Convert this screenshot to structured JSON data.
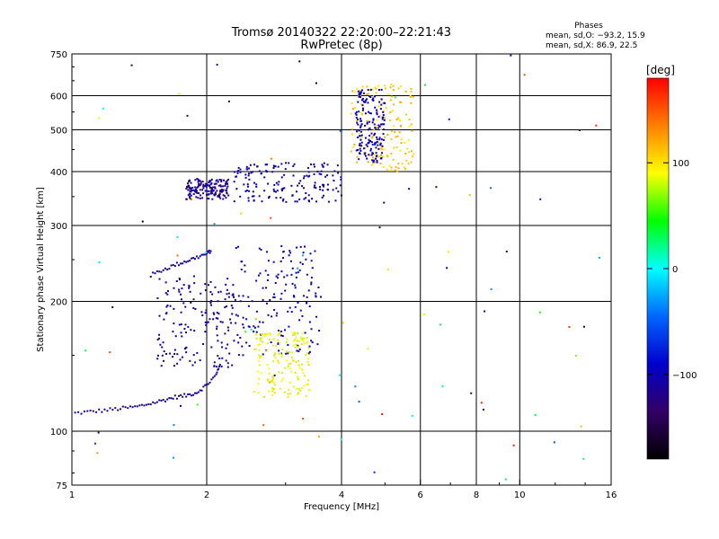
{
  "chart_data": {
    "type": "scatter",
    "title": "Tromsø 20140322 22:20:00–22:21:43",
    "subtitle": "RwPretec (8p)",
    "phase_stats": {
      "heading": "Phases",
      "line_o": "mean, sd,O: −93.2, 15.9",
      "line_x": "mean, sd,X:  86.9, 22.5"
    },
    "xlabel": "Frequency [MHz]",
    "ylabel": "Stationary phase Virtual Height [km]",
    "xscale": "log",
    "yscale": "log",
    "xlim": [
      1,
      16
    ],
    "ylim": [
      75,
      750
    ],
    "x_ticks": [
      1,
      2,
      4,
      6,
      8,
      10,
      16
    ],
    "x_tick_labels": [
      "1",
      "2",
      "4",
      "6",
      "8",
      "10",
      "16"
    ],
    "x_grid": [
      2,
      4,
      6,
      8,
      10
    ],
    "y_ticks": [
      75,
      100,
      200,
      300,
      400,
      500,
      600,
      750
    ],
    "y_tick_labels": [
      "75",
      "100",
      "200",
      "300",
      "400",
      "500",
      "600",
      "750"
    ],
    "y_grid": [
      100,
      200,
      300,
      400,
      500,
      600
    ],
    "grid": true,
    "colorbar": {
      "label": "[deg]",
      "range": [
        -180,
        180
      ],
      "ticks": [
        100,
        0,
        -100
      ],
      "tick_labels": [
        "100",
        "0",
        "−100"
      ],
      "colors": [
        "#ff0000",
        "#ff8000",
        "#ffff00",
        "#00ff00",
        "#00ffff",
        "#0066ff",
        "#0000cc",
        "#330066",
        "#000000"
      ],
      "placement": "right"
    },
    "clusters": [
      {
        "name": "o-trace-low",
        "phase": -115,
        "points": [
          [
            1.0,
            110
          ],
          [
            1.1,
            111
          ],
          [
            1.2,
            112
          ],
          [
            1.3,
            113
          ],
          [
            1.4,
            114
          ],
          [
            1.5,
            116
          ],
          [
            1.6,
            118
          ],
          [
            1.7,
            120
          ],
          [
            1.8,
            121
          ],
          [
            1.9,
            123
          ],
          [
            2.0,
            128
          ],
          [
            2.1,
            135
          ],
          [
            2.15,
            145
          ]
        ]
      },
      {
        "name": "o-trace-e",
        "phase": -110,
        "points": [
          [
            1.5,
            230
          ],
          [
            1.6,
            237
          ],
          [
            1.7,
            243
          ],
          [
            1.8,
            248
          ],
          [
            1.9,
            253
          ],
          [
            2.0,
            258
          ],
          [
            2.05,
            263
          ]
        ]
      },
      {
        "name": "o-trace-spread",
        "phase": -110,
        "spread_y": [
          140,
          230
        ],
        "x_range": [
          1.55,
          2.3
        ]
      },
      {
        "name": "o-trace-f",
        "phase": -115,
        "spread_y": [
          345,
          385
        ],
        "x_range": [
          1.8,
          2.25
        ]
      },
      {
        "name": "f-layer",
        "phase": -105,
        "spread_y": [
          340,
          420
        ],
        "x_range": [
          2.3,
          4.0
        ]
      },
      {
        "name": "mid-spread",
        "phase": -100,
        "spread_y": [
          150,
          270
        ],
        "x_range": [
          2.3,
          3.6
        ]
      },
      {
        "name": "x-trace-yellow",
        "phase": 90,
        "spread_y": [
          120,
          170
        ],
        "x_range": [
          2.55,
          3.4
        ]
      },
      {
        "name": "f-top-orange",
        "phase": 110,
        "spread_y": [
          400,
          640
        ],
        "x_range": [
          4.2,
          5.8
        ]
      },
      {
        "name": "f-top-blue",
        "phase": -100,
        "spread_y": [
          420,
          620
        ],
        "x_range": [
          4.3,
          5.0
        ]
      }
    ]
  }
}
